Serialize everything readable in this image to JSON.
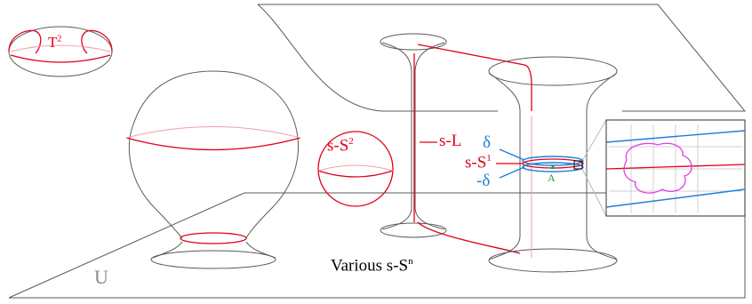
{
  "labels": {
    "torus": "T",
    "torus_sup": "2",
    "sphere": "s-S",
    "sphere_sup": "2",
    "line": "s-L",
    "circle": "s-S",
    "circle_sup": "1",
    "delta": "δ",
    "neg_delta": "-δ",
    "point": "A",
    "space": "U",
    "caption": "Various s-S",
    "caption_sup": "n"
  },
  "colors": {
    "outline": "#5a5a5a",
    "red": "#e0001a",
    "blue": "#1e7fd8",
    "green": "#20a040",
    "magenta": "#e040e0"
  }
}
